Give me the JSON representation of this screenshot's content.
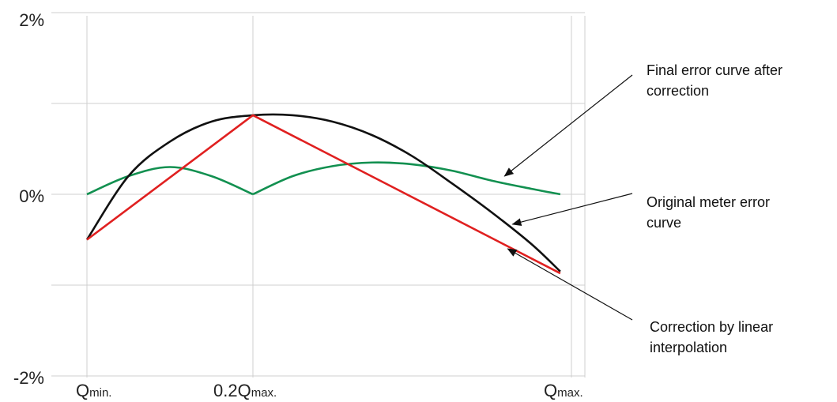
{
  "chart_data": {
    "type": "line",
    "title": "",
    "xlabel": "",
    "ylabel": "",
    "ylim": [
      -2,
      2
    ],
    "grid": true,
    "x_ticks": [
      {
        "pos": 0,
        "main": "Q",
        "sub": "min."
      },
      {
        "pos": 1,
        "main": "0.2Q",
        "sub": "max."
      },
      {
        "pos": 3,
        "main": "Q",
        "sub": "max."
      }
    ],
    "y_ticks": [
      {
        "value": 2,
        "label": "2%"
      },
      {
        "value": 1,
        "label": ""
      },
      {
        "value": 0,
        "label": "0%"
      },
      {
        "value": -1,
        "label": ""
      },
      {
        "value": -2,
        "label": "-2%"
      }
    ],
    "series": [
      {
        "key": "original",
        "color": "#111111",
        "x": [
          0,
          0.25,
          0.5,
          0.75,
          1,
          1.25,
          1.5,
          1.75,
          2,
          2.25,
          2.5,
          2.75,
          2.93
        ],
        "y": [
          -0.5,
          0.2,
          0.58,
          0.8,
          0.87,
          0.87,
          0.8,
          0.65,
          0.42,
          0.12,
          -0.2,
          -0.55,
          -0.85
        ]
      },
      {
        "key": "linear",
        "color": "#e02020",
        "x": [
          0,
          1,
          2.93
        ],
        "y": [
          -0.5,
          0.87,
          -0.87
        ]
      },
      {
        "key": "final",
        "color": "#129050",
        "x": [
          0,
          0.25,
          0.5,
          0.75,
          1,
          1.25,
          1.5,
          1.75,
          2,
          2.25,
          2.5,
          2.75,
          2.93
        ],
        "y": [
          0,
          0.2,
          0.3,
          0.2,
          0,
          0.2,
          0.31,
          0.35,
          0.33,
          0.26,
          0.15,
          0.06,
          0
        ]
      }
    ],
    "annotations": [
      {
        "key": "final-label",
        "lines": [
          "Final error curve after",
          "correction"
        ],
        "target_x": 2.58,
        "target_y": 0.2
      },
      {
        "key": "original-label",
        "lines": [
          "Original meter error",
          "curve"
        ],
        "target_x": 2.63,
        "target_y": -0.33
      },
      {
        "key": "linear-label",
        "lines": [
          "Correction by linear",
          "interpolation"
        ],
        "target_x": 2.6,
        "target_y": -0.6
      }
    ]
  }
}
